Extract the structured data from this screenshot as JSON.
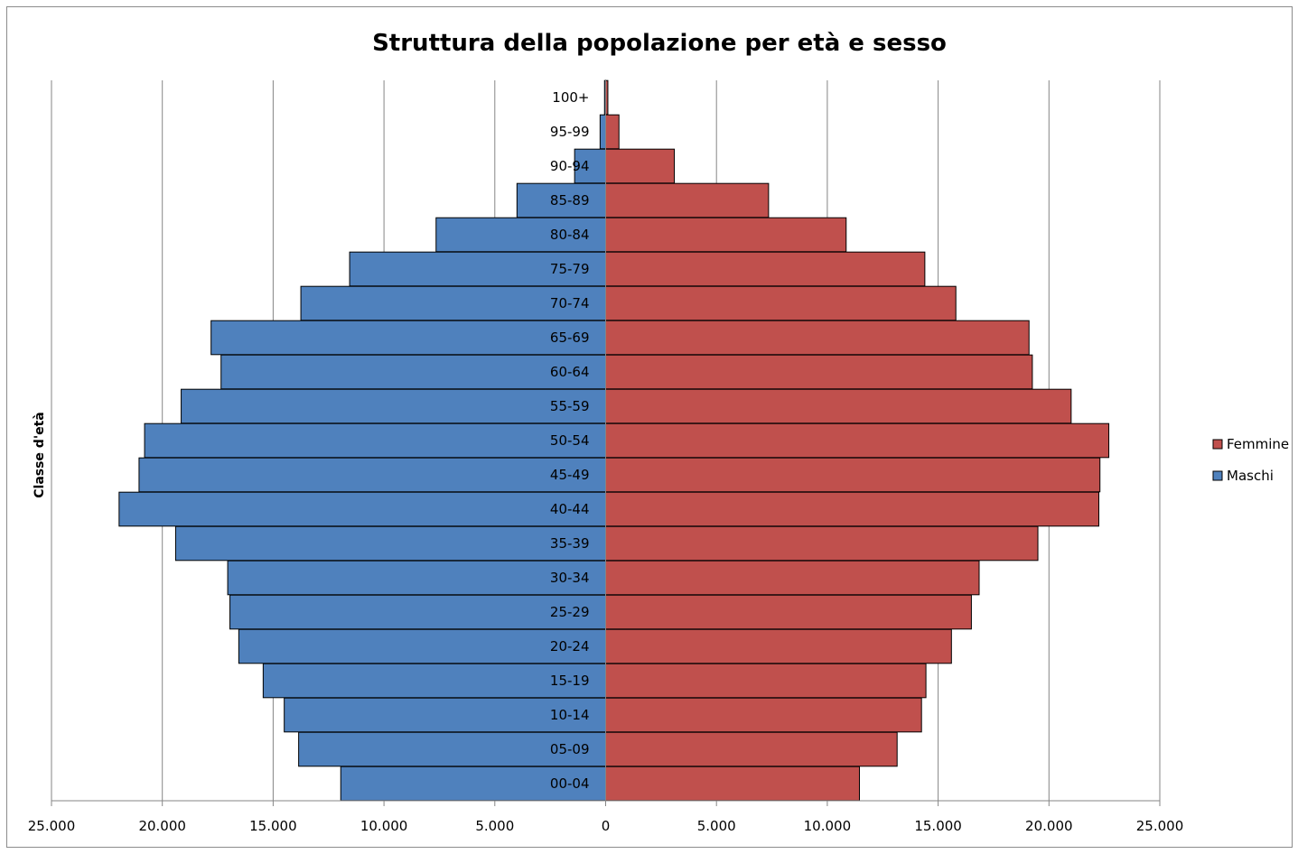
{
  "chart_data": {
    "type": "bar",
    "orientation": "horizontal",
    "title": "Struttura della popolazione per età e sesso",
    "ylabel": "Classe d'età",
    "xlabel": "",
    "xlim": [
      -25000,
      25000
    ],
    "xticks": [
      "25.000",
      "20.000",
      "15.000",
      "10.000",
      "5.000",
      "0",
      "5.000",
      "10.000",
      "15.000",
      "20.000",
      "25.000"
    ],
    "grid": true,
    "legend_position": "right",
    "categories": [
      "00-04",
      "05-09",
      "10-14",
      "15-19",
      "20-24",
      "25-29",
      "30-34",
      "35-39",
      "40-44",
      "45-49",
      "50-54",
      "55-59",
      "60-64",
      "65-69",
      "70-74",
      "75-79",
      "80-84",
      "85-89",
      "90-94",
      "95-99",
      "100+"
    ],
    "series": [
      {
        "name": "Maschi",
        "color": "#4f81bd",
        "side": "left",
        "values": [
          11950,
          13850,
          14500,
          15450,
          16550,
          16950,
          17050,
          19400,
          21950,
          21050,
          20800,
          19150,
          17350,
          17800,
          13750,
          11550,
          7650,
          4000,
          1400,
          250,
          50
        ]
      },
      {
        "name": "Femmine",
        "color": "#c0504d",
        "side": "right",
        "values": [
          11450,
          13150,
          14250,
          14450,
          15600,
          16500,
          16850,
          19500,
          22250,
          22300,
          22700,
          21000,
          19250,
          19100,
          15800,
          14400,
          10850,
          7350,
          3100,
          600,
          100
        ]
      }
    ],
    "legend": [
      "Femmine",
      "Maschi"
    ]
  }
}
